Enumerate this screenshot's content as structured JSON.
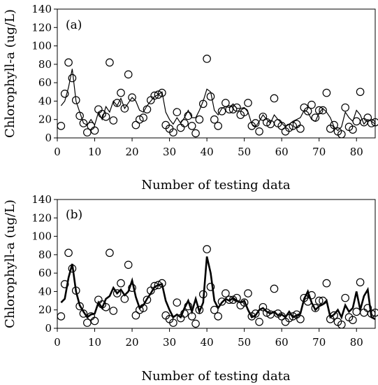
{
  "chart_data": [
    {
      "type": "scatter",
      "panel_label": "(a)",
      "xlabel": "Number of testing data",
      "ylabel": "Chlorophyll-a (ug/L)",
      "xlim": [
        0,
        85
      ],
      "ylim": [
        0,
        140
      ],
      "xticks": [
        0,
        10,
        20,
        30,
        40,
        50,
        60,
        70,
        80
      ],
      "yticks": [
        0,
        20,
        40,
        60,
        80,
        100,
        120,
        140
      ],
      "grid": false,
      "line_style": "thin",
      "series": [
        {
          "kind": "markers",
          "x": [
            1,
            2,
            3,
            4,
            5,
            6,
            7,
            8,
            9,
            10,
            11,
            12,
            13,
            14,
            15,
            16,
            17,
            18,
            19,
            20,
            21,
            22,
            23,
            24,
            25,
            26,
            27,
            28,
            29,
            30,
            31,
            32,
            33,
            34,
            35,
            36,
            37,
            38,
            39,
            40,
            41,
            42,
            43,
            44,
            45,
            46,
            47,
            48,
            49,
            50,
            51,
            52,
            53,
            54,
            55,
            56,
            57,
            58,
            59,
            60,
            61,
            62,
            63,
            64,
            65,
            66,
            67,
            68,
            69,
            70,
            71,
            72,
            73,
            74,
            75,
            76,
            77,
            78,
            79,
            80,
            81,
            82,
            83,
            84,
            85
          ],
          "y": [
            13,
            48,
            82,
            65,
            41,
            24,
            16,
            6,
            13,
            8,
            31,
            26,
            23,
            82,
            19,
            38,
            49,
            32,
            69,
            44,
            14,
            20,
            22,
            31,
            41,
            46,
            47,
            49,
            14,
            10,
            6,
            28,
            11,
            16,
            24,
            13,
            5,
            20,
            37,
            86,
            45,
            20,
            13,
            29,
            38,
            31,
            31,
            33,
            25,
            28,
            38,
            13,
            16,
            7,
            23,
            17,
            15,
            43,
            16,
            13,
            7,
            11,
            13,
            15,
            10,
            33,
            29,
            36,
            22,
            30,
            30,
            49,
            10,
            14,
            7,
            4,
            33,
            12,
            9,
            18,
            50,
            17,
            22,
            16,
            17
          ]
        },
        {
          "kind": "line",
          "x": [
            1,
            2,
            3,
            4,
            5,
            6,
            7,
            8,
            9,
            10,
            11,
            12,
            13,
            14,
            15,
            16,
            17,
            18,
            19,
            20,
            21,
            22,
            23,
            24,
            25,
            26,
            27,
            28,
            29,
            30,
            31,
            32,
            33,
            34,
            35,
            36,
            37,
            38,
            39,
            40,
            41,
            42,
            43,
            44,
            45,
            46,
            47,
            48,
            49,
            50,
            51,
            52,
            53,
            54,
            55,
            56,
            57,
            58,
            59,
            60,
            61,
            62,
            63,
            64,
            65,
            66,
            67,
            68,
            69,
            70,
            71,
            72,
            73,
            74,
            75,
            76,
            77,
            78,
            79,
            80,
            81,
            82,
            83,
            84,
            85
          ],
          "y": [
            35,
            40,
            55,
            75,
            40,
            28,
            16,
            14,
            20,
            14,
            28,
            20,
            34,
            28,
            40,
            35,
            43,
            32,
            38,
            44,
            40,
            30,
            28,
            35,
            40,
            45,
            47,
            50,
            28,
            20,
            15,
            22,
            16,
            22,
            30,
            22,
            22,
            30,
            40,
            53,
            50,
            30,
            25,
            32,
            34,
            33,
            37,
            32,
            32,
            33,
            28,
            15,
            12,
            18,
            25,
            20,
            16,
            25,
            20,
            16,
            12,
            15,
            18,
            20,
            22,
            30,
            28,
            20,
            18,
            27,
            32,
            28,
            22,
            12,
            8,
            12,
            28,
            22,
            18,
            30,
            25,
            15,
            20,
            18,
            15
          ]
        }
      ]
    },
    {
      "type": "scatter",
      "panel_label": "(b)",
      "xlabel": "Number of testing data",
      "ylabel": "Chlorophyll-a (ug/L)",
      "xlim": [
        0,
        85
      ],
      "ylim": [
        0,
        140
      ],
      "xticks": [
        0,
        10,
        20,
        30,
        40,
        50,
        60,
        70,
        80
      ],
      "yticks": [
        0,
        20,
        40,
        60,
        80,
        100,
        120,
        140
      ],
      "grid": false,
      "line_style": "thick",
      "series": [
        {
          "kind": "markers",
          "x": [
            1,
            2,
            3,
            4,
            5,
            6,
            7,
            8,
            9,
            10,
            11,
            12,
            13,
            14,
            15,
            16,
            17,
            18,
            19,
            20,
            21,
            22,
            23,
            24,
            25,
            26,
            27,
            28,
            29,
            30,
            31,
            32,
            33,
            34,
            35,
            36,
            37,
            38,
            39,
            40,
            41,
            42,
            43,
            44,
            45,
            46,
            47,
            48,
            49,
            50,
            51,
            52,
            53,
            54,
            55,
            56,
            57,
            58,
            59,
            60,
            61,
            62,
            63,
            64,
            65,
            66,
            67,
            68,
            69,
            70,
            71,
            72,
            73,
            74,
            75,
            76,
            77,
            78,
            79,
            80,
            81,
            82,
            83,
            84,
            85
          ],
          "y": [
            13,
            48,
            82,
            65,
            41,
            24,
            16,
            6,
            13,
            8,
            31,
            26,
            23,
            82,
            19,
            38,
            49,
            32,
            69,
            44,
            14,
            20,
            22,
            31,
            41,
            46,
            47,
            49,
            14,
            10,
            6,
            28,
            11,
            16,
            24,
            13,
            5,
            20,
            37,
            86,
            45,
            20,
            13,
            29,
            38,
            31,
            31,
            33,
            25,
            28,
            38,
            13,
            16,
            7,
            23,
            17,
            15,
            43,
            16,
            13,
            7,
            11,
            13,
            15,
            10,
            33,
            29,
            36,
            22,
            30,
            30,
            49,
            10,
            14,
            7,
            4,
            33,
            12,
            9,
            18,
            50,
            17,
            22,
            16,
            17
          ]
        },
        {
          "kind": "line",
          "x": [
            1,
            2,
            3,
            4,
            5,
            6,
            7,
            8,
            9,
            10,
            11,
            12,
            13,
            14,
            15,
            16,
            17,
            18,
            19,
            20,
            21,
            22,
            23,
            24,
            25,
            26,
            27,
            28,
            29,
            30,
            31,
            32,
            33,
            34,
            35,
            36,
            37,
            38,
            39,
            40,
            41,
            42,
            43,
            44,
            45,
            46,
            47,
            48,
            49,
            50,
            51,
            52,
            53,
            54,
            55,
            56,
            57,
            58,
            59,
            60,
            61,
            62,
            63,
            64,
            65,
            66,
            67,
            68,
            69,
            70,
            71,
            72,
            73,
            74,
            75,
            76,
            77,
            78,
            79,
            80,
            81,
            82,
            83,
            84,
            85
          ],
          "y": [
            28,
            32,
            55,
            70,
            40,
            25,
            18,
            12,
            15,
            16,
            28,
            22,
            32,
            35,
            44,
            38,
            42,
            36,
            40,
            52,
            34,
            22,
            25,
            32,
            38,
            45,
            47,
            48,
            30,
            20,
            12,
            15,
            12,
            22,
            30,
            18,
            32,
            18,
            28,
            78,
            60,
            30,
            22,
            28,
            32,
            30,
            33,
            30,
            28,
            30,
            20,
            12,
            14,
            20,
            22,
            18,
            16,
            18,
            14,
            15,
            12,
            18,
            12,
            14,
            16,
            32,
            40,
            28,
            20,
            24,
            26,
            30,
            12,
            15,
            20,
            12,
            25,
            18,
            22,
            40,
            20,
            35,
            42,
            12,
            10
          ]
        }
      ]
    }
  ]
}
